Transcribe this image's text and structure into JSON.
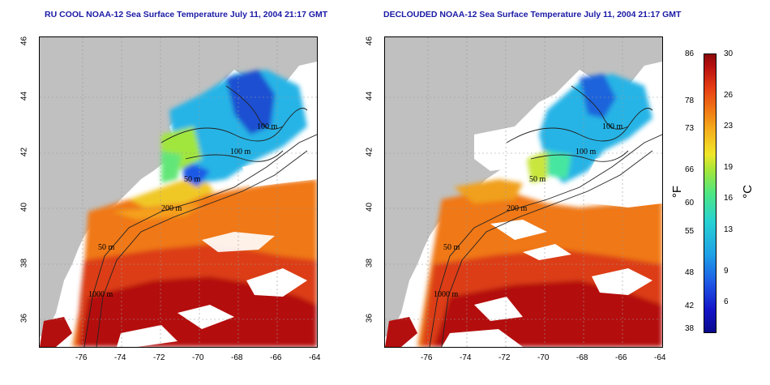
{
  "titles": {
    "left": "RU COOL NOAA-12 Sea Surface Temperature July 11, 2004 21:17 GMT",
    "right": "DECLOUDED NOAA-12 Sea Surface Temperature July 11, 2004 21:17 GMT"
  },
  "axes": {
    "x_ticks": [
      "-76",
      "-74",
      "-72",
      "-70",
      "-68",
      "-66",
      "-64"
    ],
    "y_ticks": [
      "36",
      "38",
      "40",
      "42",
      "44",
      "46"
    ]
  },
  "contour_labels": {
    "left": [
      "100 m",
      "100 m",
      "50 m",
      "200 m",
      "50 m",
      "1000 m"
    ],
    "right": [
      "100 m",
      "100 m",
      "50 m",
      "200 m",
      "50 m",
      "1000 m"
    ]
  },
  "colorbar": {
    "fahrenheit_ticks": [
      "86",
      "78",
      "73",
      "66",
      "60",
      "55",
      "48",
      "42",
      "38"
    ],
    "celsius_ticks": [
      "30",
      "26",
      "23",
      "19",
      "16",
      "13",
      "9",
      "6"
    ],
    "fahrenheit_unit": "°F",
    "celsius_unit": "°C"
  },
  "colors": {
    "land": "#c0c0c0",
    "cloud": "#ffffff",
    "title": "#1a1aa6"
  }
}
